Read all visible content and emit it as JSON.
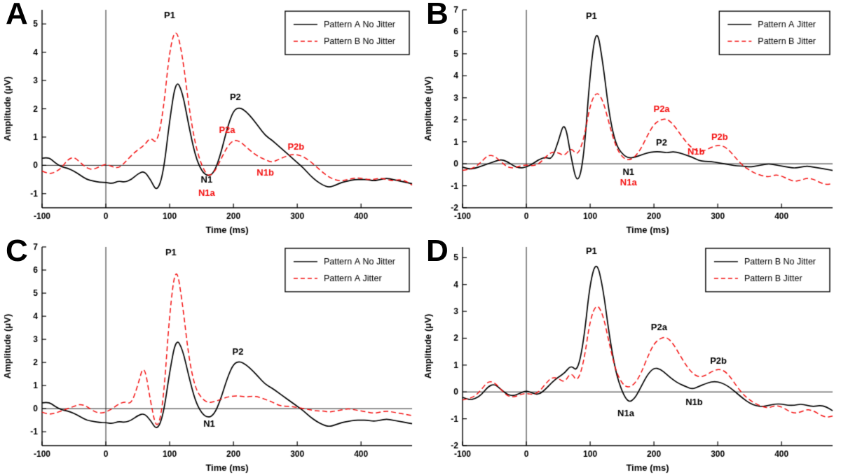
{
  "figure": {
    "background": "#ffffff"
  },
  "colors": {
    "black_series": "#000000",
    "red_series": "#f40f0f",
    "axis": "#000000",
    "zero_line": "#222222",
    "legend_border": "#000000",
    "legend_fill": "#ffffff"
  },
  "waveforms": {
    "pattern_a_no_jitter": {
      "t_start": -100,
      "t_step": 10,
      "values": [
        0.25,
        0.3,
        0.1,
        -0.05,
        -0.1,
        -0.2,
        -0.35,
        -0.5,
        -0.55,
        -0.6,
        -0.6,
        -0.65,
        -0.55,
        -0.6,
        -0.5,
        -0.3,
        -0.2,
        -0.5,
        -0.95,
        -0.3,
        1.6,
        3.05,
        2.6,
        1.4,
        0.35,
        -0.2,
        -0.4,
        -0.25,
        0.4,
        1.3,
        1.95,
        2.05,
        1.9,
        1.65,
        1.35,
        1.05,
        0.9,
        0.7,
        0.5,
        0.3,
        0.1,
        -0.1,
        -0.35,
        -0.55,
        -0.7,
        -0.78,
        -0.7,
        -0.6,
        -0.55,
        -0.5,
        -0.5,
        -0.5,
        -0.55,
        -0.5,
        -0.45,
        -0.5,
        -0.55,
        -0.6,
        -0.65
      ]
    },
    "pattern_b_no_jitter": {
      "t_start": -100,
      "t_step": 10,
      "values": [
        -0.2,
        -0.3,
        -0.25,
        -0.1,
        0.2,
        0.3,
        0.1,
        -0.1,
        -0.15,
        -0.05,
        0.05,
        -0.05,
        -0.1,
        0.1,
        0.35,
        0.55,
        0.7,
        1.0,
        0.75,
        1.9,
        4.1,
        4.9,
        3.9,
        2.1,
        0.75,
        0.0,
        -0.4,
        -0.25,
        0.2,
        0.65,
        0.9,
        0.85,
        0.65,
        0.45,
        0.3,
        0.2,
        0.1,
        0.2,
        0.3,
        0.38,
        0.38,
        0.3,
        0.15,
        -0.05,
        -0.25,
        -0.42,
        -0.52,
        -0.55,
        -0.5,
        -0.45,
        -0.45,
        -0.5,
        -0.5,
        -0.45,
        -0.5,
        -0.55,
        -0.5,
        -0.55,
        -0.7
      ]
    },
    "pattern_a_jitter": {
      "t_start": -100,
      "t_step": 10,
      "values": [
        -0.15,
        -0.25,
        -0.2,
        -0.1,
        0.0,
        0.1,
        0.2,
        0.1,
        -0.1,
        -0.2,
        -0.15,
        0.0,
        0.2,
        0.3,
        0.2,
        1.0,
        2.0,
        0.3,
        -1.0,
        0.2,
        4.2,
        6.3,
        4.6,
        2.2,
        0.9,
        0.45,
        0.25,
        0.3,
        0.4,
        0.5,
        0.55,
        0.55,
        0.5,
        0.55,
        0.5,
        0.4,
        0.3,
        0.15,
        0.1,
        0.1,
        0.05,
        0.0,
        -0.05,
        -0.1,
        -0.1,
        -0.15,
        -0.1,
        -0.05,
        0.0,
        -0.05,
        -0.1,
        -0.15,
        -0.2,
        -0.15,
        -0.1,
        -0.15,
        -0.2,
        -0.25,
        -0.3
      ]
    },
    "pattern_b_jitter": {
      "t_start": -100,
      "t_step": 10,
      "values": [
        -0.3,
        -0.25,
        -0.15,
        0.1,
        0.4,
        0.35,
        0.1,
        -0.15,
        -0.2,
        -0.1,
        -0.05,
        -0.1,
        0.0,
        0.3,
        0.55,
        0.5,
        0.35,
        0.75,
        0.35,
        1.1,
        2.7,
        3.3,
        2.9,
        1.8,
        0.8,
        0.3,
        0.15,
        0.3,
        0.7,
        1.3,
        1.8,
        2.0,
        2.05,
        1.8,
        1.4,
        1.0,
        0.7,
        0.55,
        0.6,
        0.75,
        0.85,
        0.8,
        0.55,
        0.2,
        -0.1,
        -0.3,
        -0.45,
        -0.55,
        -0.6,
        -0.5,
        -0.55,
        -0.7,
        -0.8,
        -0.75,
        -0.65,
        -0.7,
        -0.85,
        -0.95,
        -0.9
      ]
    }
  },
  "chart_data": [
    {
      "type": "line",
      "panel_label": "A",
      "xlabel": "Time (ms)",
      "ylabel": "Amplitude (μV)",
      "xlim": [
        -100,
        480
      ],
      "ylim": [
        -1.5,
        5.5
      ],
      "xticks": [
        -100,
        0,
        100,
        200,
        300,
        400
      ],
      "yticks": [
        -1,
        0,
        1,
        2,
        3,
        4,
        5
      ],
      "legend": [
        {
          "label": "Pattern A No Jitter",
          "color": "#000000",
          "dash": false,
          "waveform": "pattern_a_no_jitter"
        },
        {
          "label": "Pattern B No Jitter",
          "color": "#f40f0f",
          "dash": true,
          "waveform": "pattern_b_no_jitter"
        }
      ],
      "annotations": [
        {
          "text": "P1",
          "x": 100,
          "y": 5.2,
          "color": "#000000"
        },
        {
          "text": "P2",
          "x": 203,
          "y": 2.3,
          "color": "#000000"
        },
        {
          "text": "P2a",
          "x": 190,
          "y": 1.15,
          "color": "#f40f0f"
        },
        {
          "text": "P2b",
          "x": 298,
          "y": 0.55,
          "color": "#f40f0f"
        },
        {
          "text": "N1",
          "x": 158,
          "y": -0.62,
          "color": "#000000"
        },
        {
          "text": "N1a",
          "x": 158,
          "y": -1.08,
          "color": "#f40f0f"
        },
        {
          "text": "N1b",
          "x": 250,
          "y": -0.35,
          "color": "#f40f0f"
        }
      ]
    },
    {
      "type": "line",
      "panel_label": "B",
      "xlabel": "Time (ms)",
      "ylabel": "Amplitude (μV)",
      "xlim": [
        -100,
        480
      ],
      "ylim": [
        -2,
        7
      ],
      "xticks": [
        -100,
        0,
        100,
        200,
        300,
        400
      ],
      "yticks": [
        -2,
        -1,
        0,
        1,
        2,
        3,
        4,
        5,
        6,
        7
      ],
      "legend": [
        {
          "label": "Pattern A Jitter",
          "color": "#000000",
          "dash": false,
          "waveform": "pattern_a_jitter"
        },
        {
          "label": "Pattern B Jitter",
          "color": "#f40f0f",
          "dash": true,
          "waveform": "pattern_b_jitter"
        }
      ],
      "annotations": [
        {
          "text": "P1",
          "x": 102,
          "y": 6.6,
          "color": "#000000"
        },
        {
          "text": "P2",
          "x": 212,
          "y": 0.82,
          "color": "#000000"
        },
        {
          "text": "P2a",
          "x": 212,
          "y": 2.35,
          "color": "#f40f0f"
        },
        {
          "text": "P2b",
          "x": 303,
          "y": 1.1,
          "color": "#f40f0f"
        },
        {
          "text": "N1",
          "x": 160,
          "y": -0.5,
          "color": "#000000"
        },
        {
          "text": "N1a",
          "x": 160,
          "y": -0.98,
          "color": "#f40f0f"
        },
        {
          "text": "N1b",
          "x": 266,
          "y": 0.42,
          "color": "#f40f0f"
        }
      ]
    },
    {
      "type": "line",
      "panel_label": "C",
      "xlabel": "Time (ms)",
      "ylabel": "Amplitude (μV)",
      "xlim": [
        -100,
        480
      ],
      "ylim": [
        -1.6,
        7
      ],
      "xticks": [
        -100,
        0,
        100,
        200,
        300,
        400
      ],
      "yticks": [
        -1,
        0,
        1,
        2,
        3,
        4,
        5,
        6,
        7
      ],
      "legend": [
        {
          "label": "Pattern A No Jitter",
          "color": "#000000",
          "dash": false,
          "waveform": "pattern_a_no_jitter"
        },
        {
          "label": "Pattern A Jitter",
          "color": "#f40f0f",
          "dash": true,
          "waveform": "pattern_a_jitter"
        }
      ],
      "annotations": [
        {
          "text": "P1",
          "x": 102,
          "y": 6.65,
          "color": "#000000"
        },
        {
          "text": "P2",
          "x": 207,
          "y": 2.35,
          "color": "#000000"
        },
        {
          "text": "N1",
          "x": 162,
          "y": -0.78,
          "color": "#000000"
        }
      ]
    },
    {
      "type": "line",
      "panel_label": "D",
      "xlabel": "Time (ms)",
      "ylabel": "Amplitude (μV)",
      "xlim": [
        -100,
        480
      ],
      "ylim": [
        -2,
        5.4
      ],
      "xticks": [
        -100,
        0,
        100,
        200,
        300,
        400
      ],
      "yticks": [
        -2,
        -1,
        0,
        1,
        2,
        3,
        4,
        5
      ],
      "legend": [
        {
          "label": "Pattern B No Jitter",
          "color": "#000000",
          "dash": false,
          "waveform": "pattern_b_no_jitter"
        },
        {
          "label": "Pattern B Jitter",
          "color": "#f40f0f",
          "dash": true,
          "waveform": "pattern_b_jitter"
        }
      ],
      "annotations": [
        {
          "text": "P1",
          "x": 102,
          "y": 5.15,
          "color": "#000000"
        },
        {
          "text": "P2a",
          "x": 208,
          "y": 2.3,
          "color": "#000000"
        },
        {
          "text": "P2b",
          "x": 301,
          "y": 1.05,
          "color": "#000000"
        },
        {
          "text": "N1a",
          "x": 156,
          "y": -0.9,
          "color": "#000000"
        },
        {
          "text": "N1b",
          "x": 263,
          "y": -0.48,
          "color": "#000000"
        }
      ]
    }
  ]
}
